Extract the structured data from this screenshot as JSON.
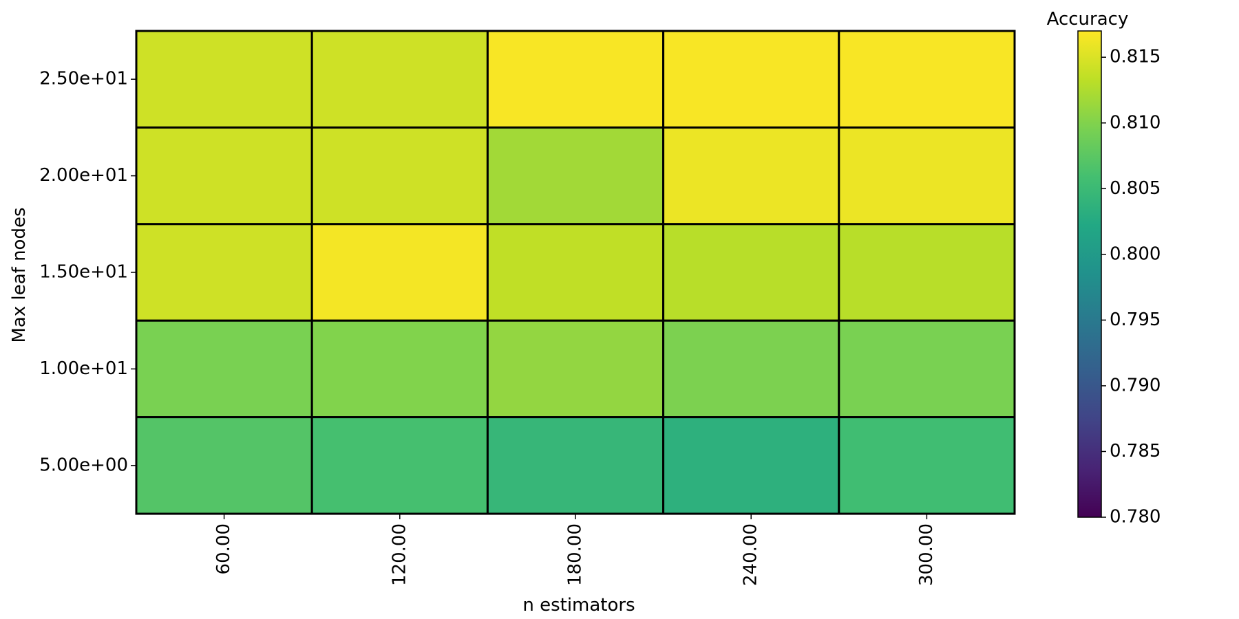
{
  "chart_data": {
    "type": "heatmap",
    "title": "",
    "xlabel": "n estimators",
    "ylabel": "Max leaf nodes",
    "x_categories": [
      "60.00",
      "120.00",
      "180.00",
      "240.00",
      "300.00"
    ],
    "y_categories_top_to_bottom": [
      "2.50e+01",
      "2.00e+01",
      "1.50e+01",
      "1.00e+01",
      "5.00e+00"
    ],
    "values_top_to_bottom": [
      [
        0.8143,
        0.8143,
        0.8167,
        0.8167,
        0.8167
      ],
      [
        0.8143,
        0.8143,
        0.8118,
        0.816,
        0.816
      ],
      [
        0.8143,
        0.8165,
        0.8135,
        0.813,
        0.813
      ],
      [
        0.8095,
        0.81,
        0.811,
        0.8097,
        0.8095
      ],
      [
        0.807,
        0.806,
        0.8045,
        0.8035,
        0.8055
      ]
    ],
    "colorscale": "viridis",
    "colorbar": {
      "title": "Accuracy",
      "range": [
        0.78,
        0.817
      ],
      "ticks": [
        "0.780",
        "0.785",
        "0.790",
        "0.795",
        "0.800",
        "0.805",
        "0.810",
        "0.815"
      ]
    },
    "grid": false,
    "cell_border_color": "#000000"
  }
}
